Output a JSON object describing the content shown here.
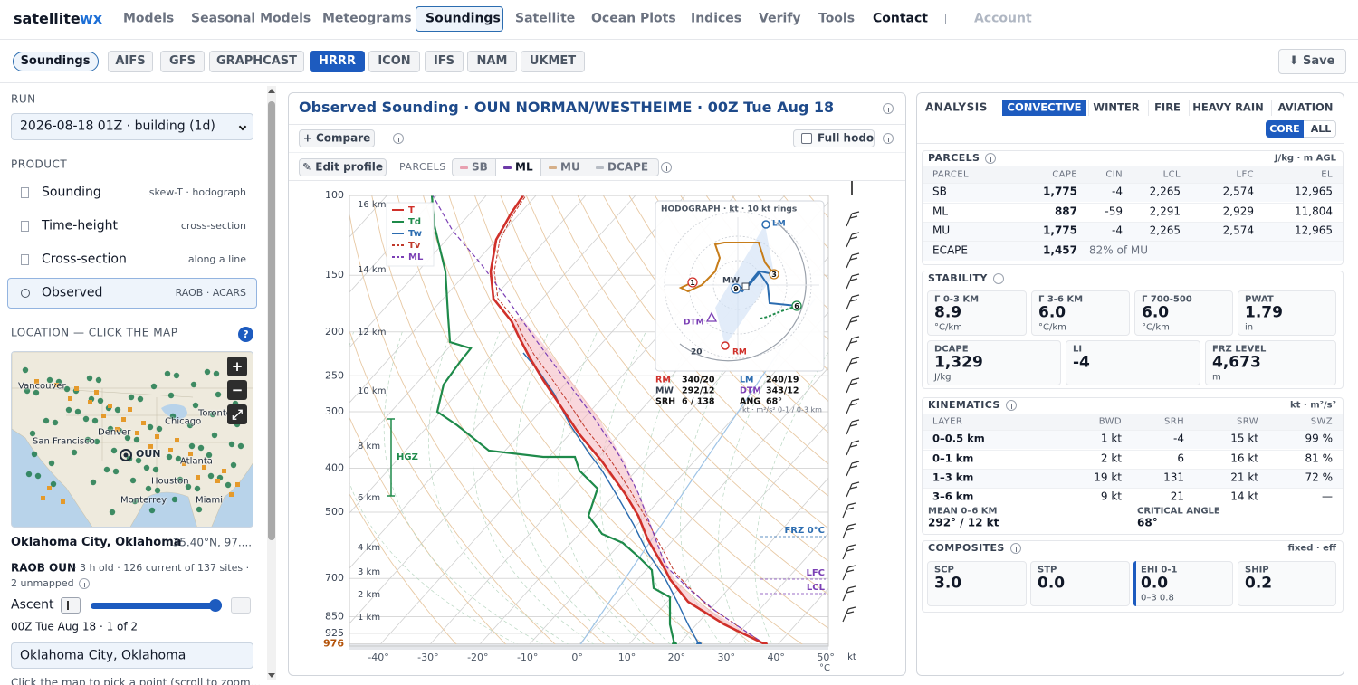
{
  "header": {
    "brand": "satellite",
    "brand_accent": "wx",
    "nav": [
      "Models",
      "Seasonal Models",
      "Meteograms",
      "Soundings",
      "Satellite",
      "Ocean Plots",
      "Indices",
      "Verify",
      "Tools",
      "Contact"
    ],
    "account": "Account"
  },
  "toolbar": {
    "mode": "Soundings",
    "models": [
      "AIFS",
      "GFS",
      "GRAPHCAST",
      "HRRR",
      "ICON",
      "IFS",
      "NAM",
      "UKMET"
    ],
    "save": "⬇ Save"
  },
  "sidebar": {
    "run_label": "RUN",
    "run_value": "2026-08-18 01Z · building (1d)",
    "product_label": "PRODUCT",
    "products": [
      {
        "name": "Sounding",
        "detail": "skew-T · hodograph"
      },
      {
        "name": "Time-height",
        "detail": "cross-section"
      },
      {
        "name": "Cross-section",
        "detail": "along a line"
      },
      {
        "name": "Observed",
        "detail": "RAOB · ACARS"
      }
    ],
    "location_label": "LOCATION — CLICK THE MAP",
    "help": "?",
    "map_labels": [
      "Vancouver",
      "Toronto",
      "Chicago",
      "Denver",
      "San Francisco",
      "OUN",
      "Atlanta",
      "Houston",
      "Monterrey",
      "Miami"
    ],
    "map_controls": [
      "+",
      "−",
      "⤢"
    ],
    "place": "Oklahoma City, Oklahoma",
    "coords": "· 35.40°N, 97....",
    "station": "RAOB OUN",
    "station_info": "· 3 h old · 126 current of 137 sites ·",
    "unmapped": "2 unmapped",
    "ascent": "Ascent",
    "ascent_time": "00Z Tue Aug 18 · 1 of 2",
    "search": "Oklahoma City, Oklahoma",
    "hint": "Click the map to pick a point (scroll to zoom..."
  },
  "sounding": {
    "title": "Observed Sounding · OUN NORMAN/WESTHEIME · 00Z Tue Aug 18",
    "compare": "+ Compare",
    "full_hodo": "Full hodo",
    "edit": "✎ Edit profile",
    "parcels_label": "PARCELS",
    "parcels": [
      "SB",
      "ML",
      "MU",
      "DCAPE"
    ],
    "pressure_ticks": [
      100,
      150,
      200,
      250,
      300,
      400,
      500,
      700,
      850,
      925,
      976
    ],
    "height_ticks": [
      "16 km",
      "14 km",
      "12 km",
      "10 km",
      "8 km",
      "6 km",
      "4 km",
      "3 km",
      "2 km",
      "1 km"
    ],
    "temp_ticks": [
      "-40°",
      "-30°",
      "-20°",
      "-10°",
      "0°",
      "10°",
      "20°",
      "30°",
      "40°",
      "50°"
    ],
    "temp_unit": "°C",
    "wind_unit": "kt",
    "legend": [
      "T",
      "Td",
      "Tw",
      "Tv",
      "ML"
    ],
    "hgz": "HGZ",
    "levels": [
      "FRZ 0°C",
      "LFC",
      "LCL"
    ],
    "hodograph": {
      "title": "HODOGRAPH · kt · 10 kt rings",
      "labels": {
        "lm": "LM",
        "mw": "MW",
        "rm": "RM",
        "dtm": "DTM",
        "ring": "20"
      },
      "markers": [
        "1",
        "3",
        "6",
        "9"
      ],
      "stats": [
        [
          "RM",
          "340/20"
        ],
        [
          "LM",
          "240/19"
        ],
        [
          "MW",
          "292/12"
        ],
        [
          "DTM",
          "343/12"
        ],
        [
          "SRH",
          "6 / 138"
        ],
        [
          "ANG",
          "68°"
        ]
      ],
      "note": "kt · m²/s² 0-1 / 0-3 km"
    }
  },
  "analysis": {
    "label": "ANALYSIS",
    "tabs": [
      "CONVECTIVE",
      "WINTER",
      "FIRE",
      "HEAVY RAIN",
      "AVIATION"
    ],
    "modes": [
      "CORE",
      "ALL"
    ],
    "parcels": {
      "title": "PARCELS",
      "units": "J/kg · m AGL",
      "columns": [
        "PARCEL",
        "CAPE",
        "CIN",
        "LCL",
        "LFC",
        "EL"
      ],
      "rows": [
        [
          "SB",
          "1,775",
          "-4",
          "2,265",
          "2,574",
          "12,965"
        ],
        [
          "ML",
          "887",
          "-59",
          "2,291",
          "2,929",
          "11,804"
        ],
        [
          "MU",
          "1,775",
          "-4",
          "2,265",
          "2,574",
          "12,965"
        ]
      ],
      "ecape": [
        "ECAPE",
        "1,457",
        "82% of MU"
      ]
    },
    "stability": {
      "title": "STABILITY",
      "cards": [
        {
          "label": "Γ 0-3 KM",
          "value": "8.9",
          "unit": "°C/km"
        },
        {
          "label": "Γ 3-6 KM",
          "value": "6.0",
          "unit": "°C/km"
        },
        {
          "label": "Γ 700-500",
          "value": "6.0",
          "unit": "°C/km"
        },
        {
          "label": "PWAT",
          "value": "1.79",
          "unit": "in"
        },
        {
          "label": "DCAPE",
          "value": "1,329",
          "unit": "J/kg"
        },
        {
          "label": "LI",
          "value": "-4"
        },
        {
          "label": "FRZ LEVEL",
          "value": "4,673",
          "unit": "m"
        }
      ]
    },
    "kinematics": {
      "title": "KINEMATICS",
      "units": "kt · m²/s²",
      "columns": [
        "LAYER",
        "BWD",
        "SRH",
        "SRW",
        "SWZ"
      ],
      "rows": [
        [
          "0–0.5 km",
          "1 kt",
          "-4",
          "15 kt",
          "99 %"
        ],
        [
          "0–1 km",
          "2 kt",
          "6",
          "16 kt",
          "81 %"
        ],
        [
          "1–3 km",
          "19 kt",
          "131",
          "21 kt",
          "72 %"
        ],
        [
          "3–6 km",
          "9 kt",
          "21",
          "14 kt",
          "—"
        ]
      ],
      "mean_label": "MEAN 0–6 KM",
      "mean_value": "292° / 12 kt",
      "angle_label": "CRITICAL ANGLE",
      "angle_value": "68°"
    },
    "composites": {
      "title": "COMPOSITES",
      "units": "fixed · eff",
      "cards": [
        {
          "label": "SCP",
          "value": "3.0"
        },
        {
          "label": "STP",
          "value": "0.0"
        },
        {
          "label": "EHI 0-1",
          "value": "0.0",
          "sub": "0–3 0.8"
        },
        {
          "label": "SHIP",
          "value": "0.2"
        }
      ]
    }
  }
}
